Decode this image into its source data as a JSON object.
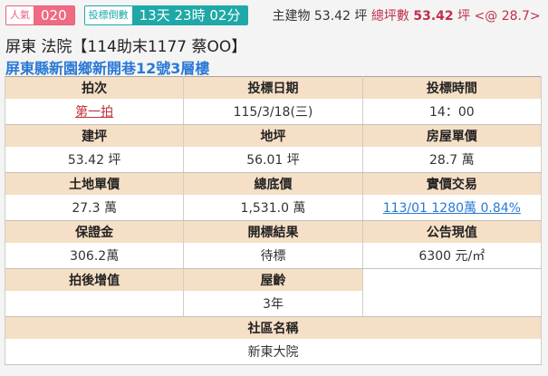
{
  "header": {
    "popularity_label": "人氣",
    "popularity_value": "020",
    "countdown_label": "投標倒數",
    "countdown_value": "13天 23時 02分",
    "main_building": "主建物 53.42 坪",
    "total_label": "總坪數",
    "total_value": "53.42",
    "total_unit": "坪 <@ 28.7>"
  },
  "title": "屏東 法院【114助末1177 蔡OO】",
  "address": "屏東縣新園鄉新開巷12號3層樓",
  "table": {
    "round_label": "拍次",
    "round": "第一拍",
    "date_label": "投標日期",
    "date": "115/3/18(三)",
    "time_label": "投標時間",
    "time": "14：00",
    "build_area_label": "建坪",
    "build_area": "53.42 坪",
    "land_area_label": "地坪",
    "land_area": "56.01 坪",
    "house_price_label": "房屋單價",
    "house_price": "28.7 萬",
    "land_price_label": "土地單價",
    "land_price": "27.3 萬",
    "base_price_label": "總底價",
    "base_price": "1,531.0 萬",
    "actual_label": "實價交易",
    "actual": "113/01 1280萬 0.84%",
    "deposit_label": "保證金",
    "deposit": "306.2萬",
    "result_label": "開標結果",
    "result": "待標",
    "announced_label": "公告現值",
    "announced": "6300 元/㎡",
    "increment_label": "拍後增值",
    "increment": "",
    "age_label": "屋齡",
    "age": "3年",
    "community_label": "社區名稱",
    "community": "新東大院"
  }
}
